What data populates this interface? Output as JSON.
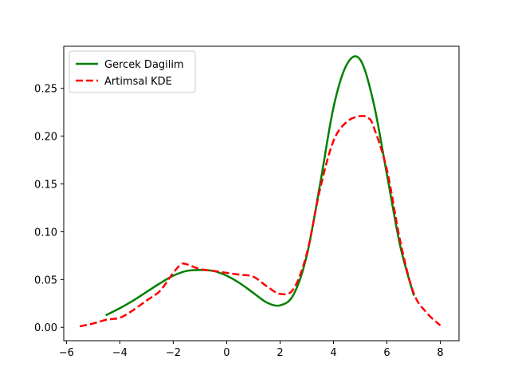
{
  "chart_data": {
    "type": "line",
    "title": "",
    "xlabel": "",
    "ylabel": "",
    "xlim": [
      -6.1,
      8.7
    ],
    "ylim": [
      -0.014,
      0.294
    ],
    "xticks": [
      -6,
      -4,
      -2,
      0,
      2,
      4,
      6,
      8
    ],
    "yticks": [
      0.0,
      0.05,
      0.1,
      0.15,
      0.2,
      0.25
    ],
    "ytick_labels": [
      "0.00",
      "0.05",
      "0.10",
      "0.15",
      "0.20",
      "0.25"
    ],
    "grid": false,
    "legend_placement": "upper-left",
    "series": [
      {
        "name": "Gercek Dagilim",
        "color": "#008000",
        "style": "solid",
        "x": [
          -4.5,
          -4.0,
          -3.5,
          -3.0,
          -2.5,
          -2.0,
          -1.5,
          -1.0,
          -0.5,
          0.0,
          0.5,
          1.0,
          1.5,
          2.0,
          2.5,
          3.0,
          3.5,
          4.0,
          4.5,
          5.0,
          5.5,
          6.0,
          6.5,
          7.0
        ],
        "y": [
          0.013,
          0.02,
          0.028,
          0.037,
          0.046,
          0.054,
          0.059,
          0.06,
          0.059,
          0.054,
          0.046,
          0.036,
          0.026,
          0.023,
          0.034,
          0.075,
          0.15,
          0.23,
          0.275,
          0.28,
          0.235,
          0.16,
          0.085,
          0.034
        ]
      },
      {
        "name": "Artimsal KDE",
        "color": "#ff0000",
        "style": "dashed",
        "x": [
          -5.5,
          -5.0,
          -4.5,
          -4.0,
          -3.5,
          -3.0,
          -2.5,
          -2.0,
          -1.7,
          -1.5,
          -1.0,
          -0.5,
          0.0,
          0.5,
          1.0,
          1.5,
          2.0,
          2.5,
          3.0,
          3.5,
          4.0,
          4.5,
          5.0,
          5.3,
          5.5,
          6.0,
          6.5,
          7.0,
          7.5,
          8.0
        ],
        "y": [
          0.001,
          0.004,
          0.008,
          0.01,
          0.018,
          0.028,
          0.038,
          0.057,
          0.066,
          0.066,
          0.061,
          0.059,
          0.057,
          0.055,
          0.053,
          0.043,
          0.035,
          0.04,
          0.077,
          0.145,
          0.195,
          0.215,
          0.221,
          0.219,
          0.21,
          0.165,
          0.09,
          0.036,
          0.015,
          0.002
        ]
      }
    ]
  }
}
